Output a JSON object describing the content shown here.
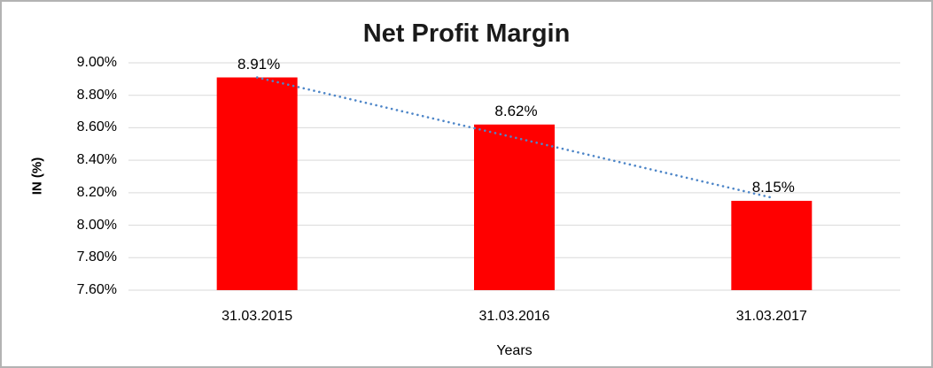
{
  "chart_data": {
    "type": "bar",
    "title": "Net Profit Margin",
    "xlabel": "Years",
    "ylabel": "IN (%)",
    "categories": [
      "31.03.2015",
      "31.03.2016",
      "31.03.2017"
    ],
    "values": [
      8.91,
      8.62,
      8.15
    ],
    "data_labels": [
      "8.91%",
      "8.62%",
      "8.15%"
    ],
    "ytick_labels": [
      "9.00%",
      "8.80%",
      "8.60%",
      "8.40%",
      "8.20%",
      "8.00%",
      "7.80%",
      "7.60%"
    ],
    "ytick_values": [
      9.0,
      8.8,
      8.6,
      8.4,
      8.2,
      8.0,
      7.8,
      7.6
    ],
    "ylim": [
      7.6,
      9.0
    ],
    "grid": true,
    "legend_position": "none",
    "bar_color": "#FF0000",
    "gridline_color": "#D9D9D9",
    "text_color": "#000000",
    "frame_border_color": "#B3B3B3",
    "trendline": {
      "type": "linear",
      "style": "dotted",
      "color": "#4E86C8",
      "start_value": 8.91,
      "end_value": 8.17
    }
  }
}
